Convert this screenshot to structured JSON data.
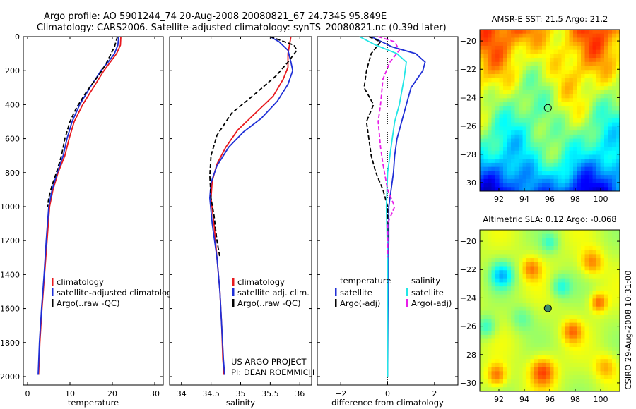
{
  "title_line1": "Argo profile: AO 5901244_74 20-Aug-2008 20080821_67 24.734S 95.849E",
  "title_line2": "Climatology: CARS2006. Satellite-adjusted climatology: synTS_20080821.nc (0.39d later)",
  "side_label": "CSIRO 29-Aug-2008 10:31:00",
  "colors": {
    "red": "#e8191e",
    "blue": "#1f2fd6",
    "black": "#000000",
    "cyan": "#22e6e6",
    "magenta": "#e81ee8"
  },
  "chart_data": [
    {
      "type": "line",
      "xlabel": "temperature",
      "xlim": [
        -1,
        32
      ],
      "ylim": [
        2050,
        0
      ],
      "xticks": [
        0,
        10,
        20,
        30
      ],
      "yticks": [
        0,
        200,
        400,
        600,
        800,
        1000,
        1200,
        1400,
        1600,
        1800,
        2000
      ],
      "legend": [
        "climatology",
        "satellite-adjusted climatology",
        "Argo(..raw -QC)"
      ],
      "series": [
        {
          "name": "climatology",
          "color": "red",
          "dash": false,
          "points": [
            [
              22.0,
              0
            ],
            [
              21.9,
              50
            ],
            [
              21.0,
              100
            ],
            [
              19.5,
              150
            ],
            [
              18.0,
              200
            ],
            [
              15.5,
              300
            ],
            [
              13.0,
              400
            ],
            [
              11.0,
              500
            ],
            [
              9.8,
              600
            ],
            [
              8.8,
              700
            ],
            [
              7.2,
              800
            ],
            [
              6.0,
              900
            ],
            [
              5.2,
              1000
            ],
            [
              4.6,
              1200
            ],
            [
              4.0,
              1400
            ],
            [
              3.4,
              1600
            ],
            [
              2.9,
              1800
            ],
            [
              2.6,
              1990
            ]
          ]
        },
        {
          "name": "satellite-adjusted climatology",
          "color": "blue",
          "dash": false,
          "points": [
            [
              21.5,
              0
            ],
            [
              21.3,
              50
            ],
            [
              20.5,
              100
            ],
            [
              19.0,
              150
            ],
            [
              17.3,
              200
            ],
            [
              14.7,
              300
            ],
            [
              12.3,
              400
            ],
            [
              10.5,
              500
            ],
            [
              9.3,
              600
            ],
            [
              8.4,
              700
            ],
            [
              7.0,
              800
            ],
            [
              5.8,
              900
            ],
            [
              5.0,
              1000
            ],
            [
              4.4,
              1200
            ],
            [
              3.9,
              1400
            ],
            [
              3.3,
              1600
            ],
            [
              2.8,
              1800
            ],
            [
              2.5,
              1990
            ]
          ]
        },
        {
          "name": "Argo(..raw -QC)",
          "color": "black",
          "dash": true,
          "points": [
            [
              21.2,
              0
            ],
            [
              20.5,
              60
            ],
            [
              19.3,
              120
            ],
            [
              18.5,
              160
            ],
            [
              17.0,
              220
            ],
            [
              14.0,
              320
            ],
            [
              11.5,
              420
            ],
            [
              10.0,
              500
            ],
            [
              8.8,
              600
            ],
            [
              8.0,
              700
            ],
            [
              6.8,
              800
            ],
            [
              5.7,
              880
            ],
            [
              5.0,
              950
            ],
            [
              4.7,
              1000
            ]
          ]
        }
      ]
    },
    {
      "type": "line",
      "xlabel": "salinity",
      "xlim": [
        33.8,
        36.2
      ],
      "ylim": [
        2050,
        0
      ],
      "xticks": [
        34,
        34.5,
        35,
        35.5,
        36
      ],
      "legend": [
        "climatology",
        "satellite adj. clim.",
        "Argo(..raw -QC)"
      ],
      "annotation": [
        "US ARGO PROJECT",
        "PI: DEAN ROEMMICH"
      ],
      "series": [
        {
          "name": "climatology",
          "color": "red",
          "dash": false,
          "points": [
            [
              35.85,
              0
            ],
            [
              35.8,
              100
            ],
            [
              35.8,
              180
            ],
            [
              35.72,
              250
            ],
            [
              35.55,
              350
            ],
            [
              35.25,
              450
            ],
            [
              34.95,
              550
            ],
            [
              34.75,
              650
            ],
            [
              34.6,
              750
            ],
            [
              34.52,
              850
            ],
            [
              34.5,
              950
            ],
            [
              34.55,
              1100
            ],
            [
              34.6,
              1300
            ],
            [
              34.65,
              1500
            ],
            [
              34.68,
              1700
            ],
            [
              34.7,
              1900
            ],
            [
              34.72,
              1990
            ]
          ]
        },
        {
          "name": "satellite adj. clim.",
          "color": "blue",
          "dash": false,
          "points": [
            [
              35.5,
              0
            ],
            [
              35.65,
              30
            ],
            [
              35.8,
              80
            ],
            [
              35.85,
              150
            ],
            [
              35.88,
              200
            ],
            [
              35.8,
              280
            ],
            [
              35.62,
              380
            ],
            [
              35.35,
              480
            ],
            [
              35.05,
              560
            ],
            [
              34.8,
              650
            ],
            [
              34.6,
              760
            ],
            [
              34.5,
              860
            ],
            [
              34.48,
              950
            ],
            [
              34.52,
              1100
            ],
            [
              34.6,
              1300
            ],
            [
              34.65,
              1500
            ],
            [
              34.68,
              1700
            ],
            [
              34.71,
              1900
            ],
            [
              34.73,
              1990
            ]
          ]
        },
        {
          "name": "Argo(..raw -QC)",
          "color": "black",
          "dash": true,
          "points": [
            [
              35.5,
              0
            ],
            [
              35.9,
              50
            ],
            [
              35.95,
              80
            ],
            [
              35.8,
              150
            ],
            [
              35.6,
              230
            ],
            [
              35.2,
              350
            ],
            [
              34.85,
              450
            ],
            [
              34.6,
              580
            ],
            [
              34.5,
              700
            ],
            [
              34.48,
              820
            ],
            [
              34.5,
              950
            ],
            [
              34.55,
              1050
            ],
            [
              34.6,
              1200
            ],
            [
              34.65,
              1300
            ]
          ]
        }
      ]
    },
    {
      "type": "line",
      "xlabel": "difference from climatology",
      "xlim": [
        -3,
        3
      ],
      "ylim": [
        2050,
        0
      ],
      "xticks": [
        -2,
        0,
        2
      ],
      "legend_left_title": "temperature",
      "legend_right_title": "salinity",
      "legend": [
        "satellite",
        "Argo(-adj)",
        "satellite",
        "Argo(-adj)"
      ],
      "series": [
        {
          "name": "satellite",
          "color": "blue",
          "dash": false,
          "points": [
            [
              -0.7,
              0
            ],
            [
              0.2,
              60
            ],
            [
              1.2,
              100
            ],
            [
              1.6,
              150
            ],
            [
              1.5,
              200
            ],
            [
              1.0,
              300
            ],
            [
              0.8,
              400
            ],
            [
              0.6,
              500
            ],
            [
              0.4,
              600
            ],
            [
              0.3,
              700
            ],
            [
              0.25,
              800
            ],
            [
              0.15,
              900
            ],
            [
              0.05,
              1000
            ],
            [
              0.05,
              1200
            ],
            [
              0.02,
              1500
            ],
            [
              0.0,
              2000
            ]
          ]
        },
        {
          "name": "Argo(-adj)",
          "color": "black",
          "dash": true,
          "points": [
            [
              -0.8,
              0
            ],
            [
              -0.3,
              30
            ],
            [
              -0.7,
              100
            ],
            [
              -0.9,
              200
            ],
            [
              -1.0,
              300
            ],
            [
              -0.6,
              400
            ],
            [
              -0.9,
              500
            ],
            [
              -0.8,
              600
            ],
            [
              -0.7,
              700
            ],
            [
              -0.5,
              800
            ],
            [
              -0.2,
              900
            ],
            [
              0.0,
              1000
            ],
            [
              0.0,
              1200
            ]
          ]
        },
        {
          "name": "satellite",
          "color": "cyan",
          "dash": false,
          "points": [
            [
              -1.2,
              0
            ],
            [
              -0.5,
              50
            ],
            [
              0.4,
              100
            ],
            [
              0.8,
              150
            ],
            [
              0.7,
              250
            ],
            [
              0.5,
              400
            ],
            [
              0.3,
              500
            ],
            [
              0.2,
              600
            ],
            [
              0.1,
              700
            ],
            [
              0.0,
              800
            ],
            [
              -0.05,
              1000
            ],
            [
              0.0,
              1300
            ],
            [
              0.0,
              2000
            ]
          ]
        },
        {
          "name": "Argo(-adj)",
          "color": "magenta",
          "dash": true,
          "points": [
            [
              -0.4,
              0
            ],
            [
              0.3,
              30
            ],
            [
              0.5,
              80
            ],
            [
              0.1,
              150
            ],
            [
              -0.2,
              250
            ],
            [
              -0.3,
              400
            ],
            [
              -0.4,
              500
            ],
            [
              -0.3,
              650
            ],
            [
              -0.2,
              750
            ],
            [
              0.0,
              900
            ],
            [
              0.3,
              1000
            ],
            [
              0.0,
              1100
            ],
            [
              0.0,
              1300
            ]
          ]
        }
      ]
    },
    {
      "type": "heatmap",
      "title": "AMSR-E SST: 21.5 Argo: 21.2",
      "xlim": [
        90.5,
        101.5
      ],
      "ylim": [
        -30.6,
        -19.2
      ],
      "xticks": [
        92,
        94,
        96,
        98,
        100
      ],
      "yticks": [
        -20,
        -22,
        -24,
        -26,
        -28,
        -30
      ],
      "marker": {
        "lon": 95.849,
        "lat": -24.734
      },
      "field": "sst"
    },
    {
      "type": "heatmap",
      "title": "Altimetric SLA: 0.12 Argo: -0.068",
      "xlim": [
        90.5,
        101.5
      ],
      "ylim": [
        -30.6,
        -19.2
      ],
      "xticks": [
        92,
        94,
        96,
        98,
        100
      ],
      "yticks": [
        -20,
        -22,
        -24,
        -26,
        -28,
        -30
      ],
      "marker": {
        "lon": 95.849,
        "lat": -24.734
      },
      "field": "sla"
    }
  ]
}
